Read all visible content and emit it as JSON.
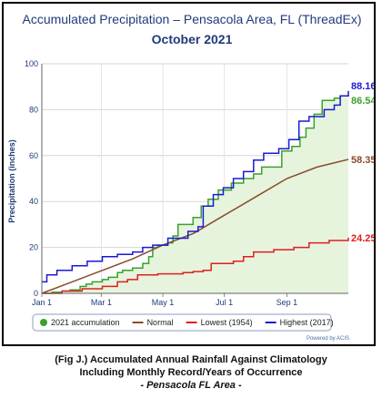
{
  "chart_data": {
    "type": "line",
    "title": "Accumulated Precipitation – Pensacola Area, FL (ThreadEx)",
    "subtitle": "October 2021",
    "xlabel": "",
    "ylabel": "Precipitation (inches)",
    "ylim": [
      0,
      100
    ],
    "xlim": [
      0,
      304
    ],
    "y_ticks": [
      0,
      20,
      40,
      60,
      80,
      100
    ],
    "x_ticks": [
      {
        "label": "Jan 1",
        "day": 0
      },
      {
        "label": "Mar 1",
        "day": 59
      },
      {
        "label": "May 1",
        "day": 120
      },
      {
        "label": "Jul 1",
        "day": 181
      },
      {
        "label": "Sep 1",
        "day": 243
      }
    ],
    "grid": true,
    "legend_position": "bottom",
    "series": [
      {
        "name": "2021 accumulation",
        "color": "#3aa12c",
        "fill": "#e6f4de",
        "end_label": "86.54”",
        "points": [
          [
            0,
            0
          ],
          [
            10,
            0.5
          ],
          [
            20,
            1
          ],
          [
            28,
            1.5
          ],
          [
            38,
            3
          ],
          [
            44,
            4
          ],
          [
            50,
            5
          ],
          [
            60,
            6
          ],
          [
            66,
            7
          ],
          [
            75,
            9
          ],
          [
            80,
            10
          ],
          [
            90,
            11
          ],
          [
            100,
            13
          ],
          [
            106,
            16
          ],
          [
            110,
            20
          ],
          [
            115,
            21
          ],
          [
            125,
            22
          ],
          [
            130,
            25
          ],
          [
            135,
            30
          ],
          [
            145,
            30
          ],
          [
            150,
            33
          ],
          [
            158,
            38
          ],
          [
            165,
            41
          ],
          [
            175,
            45
          ],
          [
            188,
            48
          ],
          [
            200,
            50
          ],
          [
            210,
            52
          ],
          [
            218,
            55
          ],
          [
            230,
            55
          ],
          [
            238,
            62
          ],
          [
            248,
            64
          ],
          [
            256,
            68
          ],
          [
            262,
            72
          ],
          [
            270,
            78
          ],
          [
            278,
            84
          ],
          [
            290,
            85
          ],
          [
            296,
            86
          ],
          [
            304,
            86.54
          ]
        ]
      },
      {
        "name": "Normal",
        "color": "#8b4a2b",
        "fill": "",
        "end_label": "58.35”",
        "points": [
          [
            0,
            0
          ],
          [
            30,
            5
          ],
          [
            60,
            10
          ],
          [
            90,
            15
          ],
          [
            120,
            21
          ],
          [
            150,
            26
          ],
          [
            181,
            34
          ],
          [
            212,
            42
          ],
          [
            243,
            50
          ],
          [
            273,
            55
          ],
          [
            304,
            58.35
          ]
        ]
      },
      {
        "name": "Lowest (1954)",
        "color": "#e01e1e",
        "fill": "",
        "end_label": "24.25”",
        "points": [
          [
            0,
            0
          ],
          [
            20,
            1
          ],
          [
            40,
            2
          ],
          [
            60,
            3
          ],
          [
            75,
            5
          ],
          [
            85,
            6
          ],
          [
            95,
            8
          ],
          [
            115,
            8.5
          ],
          [
            140,
            9
          ],
          [
            150,
            9.5
          ],
          [
            160,
            10
          ],
          [
            168,
            13
          ],
          [
            190,
            14
          ],
          [
            200,
            16
          ],
          [
            210,
            18
          ],
          [
            230,
            19
          ],
          [
            250,
            20
          ],
          [
            265,
            22
          ],
          [
            285,
            23
          ],
          [
            304,
            24.25
          ]
        ]
      },
      {
        "name": "Highest (2017)",
        "color": "#1a1ad4",
        "fill": "",
        "end_label": "88.16”",
        "points": [
          [
            0,
            5
          ],
          [
            5,
            8
          ],
          [
            15,
            10
          ],
          [
            30,
            12
          ],
          [
            45,
            14
          ],
          [
            60,
            16
          ],
          [
            75,
            17
          ],
          [
            90,
            18
          ],
          [
            100,
            20
          ],
          [
            110,
            21
          ],
          [
            125,
            24
          ],
          [
            145,
            27
          ],
          [
            155,
            29
          ],
          [
            160,
            38
          ],
          [
            170,
            43
          ],
          [
            180,
            46
          ],
          [
            190,
            50
          ],
          [
            200,
            53
          ],
          [
            210,
            58
          ],
          [
            220,
            61
          ],
          [
            235,
            63
          ],
          [
            245,
            67
          ],
          [
            255,
            75
          ],
          [
            265,
            77
          ],
          [
            280,
            80
          ],
          [
            290,
            82
          ],
          [
            296,
            86
          ],
          [
            304,
            88.16
          ]
        ]
      }
    ],
    "credits": "Powered by ACIS"
  },
  "caption": {
    "line1": "(Fig J.) Accumulated Annual Rainfall Against  Climatology",
    "line2": "Including Monthly Record/Years of Occurrence",
    "line3": "- Pensacola FL Area -"
  }
}
